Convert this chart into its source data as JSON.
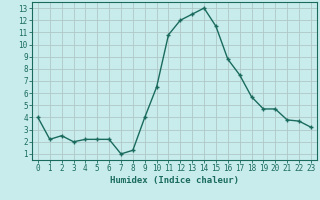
{
  "x": [
    0,
    1,
    2,
    3,
    4,
    5,
    6,
    7,
    8,
    9,
    10,
    11,
    12,
    13,
    14,
    15,
    16,
    17,
    18,
    19,
    20,
    21,
    22,
    23
  ],
  "y": [
    4.0,
    2.2,
    2.5,
    2.0,
    2.2,
    2.2,
    2.2,
    1.0,
    1.3,
    4.0,
    6.5,
    10.8,
    12.0,
    12.5,
    13.0,
    11.5,
    8.8,
    7.5,
    5.7,
    4.7,
    4.7,
    3.8,
    3.7,
    3.2
  ],
  "line_color": "#1a6b5e",
  "marker": "+",
  "marker_size": 3.5,
  "bg_color": "#c8ecec",
  "grid_color": "#b0c8c8",
  "xlabel": "Humidex (Indice chaleur)",
  "xlim": [
    -0.5,
    23.5
  ],
  "ylim": [
    0.5,
    13.5
  ],
  "yticks": [
    1,
    2,
    3,
    4,
    5,
    6,
    7,
    8,
    9,
    10,
    11,
    12,
    13
  ],
  "xticks": [
    0,
    1,
    2,
    3,
    4,
    5,
    6,
    7,
    8,
    9,
    10,
    11,
    12,
    13,
    14,
    15,
    16,
    17,
    18,
    19,
    20,
    21,
    22,
    23
  ],
  "tick_color": "#1a6b5e",
  "label_fontsize": 6.5,
  "tick_fontsize": 5.5,
  "linewidth": 1.0,
  "marker_color": "#1a6b5e"
}
